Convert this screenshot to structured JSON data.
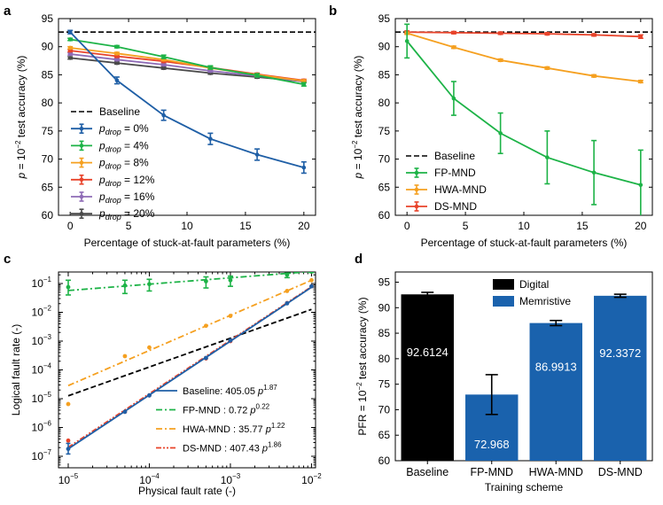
{
  "colors": {
    "blue": "#1f5fa6",
    "green": "#1db347",
    "orange": "#f5a020",
    "red": "#e8432a",
    "purple": "#8e6bb6",
    "dark": "#4a4a4a",
    "black": "#000000",
    "bar_blue": "#1a62ad"
  },
  "chart_data": [
    {
      "panel": "a",
      "type": "line",
      "xlabel": "Percentage of stuck-at-fault parameters (%)",
      "ylabel_prefix": "p",
      "ylabel_mid": " = 10",
      "ylabel_sup": "−2",
      "ylabel_suffix": " test accuracy (%)",
      "x_ticks": [
        0,
        5,
        10,
        15,
        20
      ],
      "y_ticks": [
        60,
        65,
        70,
        75,
        80,
        85,
        90,
        95
      ],
      "xlim": [
        -1,
        21
      ],
      "ylim": [
        60,
        95
      ],
      "baseline": 92.6,
      "legend_position": "bottom-left",
      "legend_baseline_label": "Baseline",
      "x": [
        0,
        4,
        8,
        12,
        16,
        20
      ],
      "series": [
        {
          "label_pre": "p",
          "label_sub": "drop",
          "label_post": " = 0%",
          "color_key": "blue",
          "values": [
            92.6,
            84.0,
            77.8,
            73.6,
            70.8,
            68.5
          ],
          "errors": [
            0.3,
            0.6,
            0.9,
            1.0,
            1.0,
            1.0
          ]
        },
        {
          "label_pre": "p",
          "label_sub": "drop",
          "label_post": " = 4%",
          "color_key": "green",
          "values": [
            91.3,
            90.0,
            88.2,
            86.3,
            84.9,
            83.3
          ],
          "errors": [
            0.2,
            0.2,
            0.3,
            0.3,
            0.3,
            0.3
          ]
        },
        {
          "label_pre": "p",
          "label_sub": "drop",
          "label_post": " = 8%",
          "color_key": "orange",
          "values": [
            89.8,
            88.8,
            87.7,
            86.2,
            85.0,
            83.9
          ],
          "errors": [
            0.2,
            0.2,
            0.2,
            0.2,
            0.2,
            0.2
          ]
        },
        {
          "label_pre": "p",
          "label_sub": "drop",
          "label_post": " = 12%",
          "color_key": "red",
          "values": [
            89.3,
            88.3,
            87.4,
            86.3,
            85.1,
            84.0
          ],
          "errors": [
            0.2,
            0.2,
            0.2,
            0.2,
            0.2,
            0.2
          ]
        },
        {
          "label_pre": "p",
          "label_sub": "drop",
          "label_post": " = 16%",
          "color_key": "purple",
          "values": [
            88.7,
            87.7,
            86.8,
            85.7,
            84.8,
            83.8
          ],
          "errors": [
            0.2,
            0.2,
            0.2,
            0.2,
            0.2,
            0.2
          ]
        },
        {
          "label_pre": "p",
          "label_sub": "drop",
          "label_post": " = 20%",
          "color_key": "dark",
          "values": [
            88.0,
            87.1,
            86.2,
            85.3,
            84.6,
            83.8
          ],
          "errors": [
            0.2,
            0.2,
            0.2,
            0.2,
            0.2,
            0.2
          ]
        }
      ]
    },
    {
      "panel": "b",
      "type": "line",
      "xlabel": "Percentage of stuck-at-fault parameters (%)",
      "ylabel_prefix": "p",
      "ylabel_mid": " = 10",
      "ylabel_sup": "−2",
      "ylabel_suffix": " test accuracy (%)",
      "x_ticks": [
        0,
        5,
        10,
        15,
        20
      ],
      "y_ticks": [
        60,
        65,
        70,
        75,
        80,
        85,
        90,
        95
      ],
      "xlim": [
        -1,
        21
      ],
      "ylim": [
        60,
        95
      ],
      "baseline": 92.6,
      "legend_position": "bottom-left",
      "legend_baseline_label": "Baseline",
      "x": [
        0,
        4,
        8,
        12,
        16,
        20
      ],
      "series": [
        {
          "label": "FP-MND",
          "color_key": "green",
          "values": [
            91.0,
            80.8,
            74.6,
            70.3,
            67.6,
            65.4
          ],
          "errors": [
            3.0,
            3.0,
            3.6,
            4.7,
            5.7,
            6.2
          ]
        },
        {
          "label": "HWA-MND",
          "color_key": "orange",
          "values": [
            92.4,
            89.9,
            87.6,
            86.2,
            84.8,
            83.8
          ],
          "errors": [
            0.2,
            0.2,
            0.2,
            0.2,
            0.2,
            0.2
          ]
        },
        {
          "label": "DS-MND",
          "color_key": "red",
          "values": [
            92.6,
            92.5,
            92.4,
            92.3,
            92.1,
            91.8
          ],
          "errors": [
            0.2,
            0.2,
            0.2,
            0.2,
            0.2,
            0.3
          ]
        }
      ]
    },
    {
      "panel": "c",
      "type": "scatter",
      "scale": "log-log",
      "xlabel": "Physical fault rate (-)",
      "ylabel": "Logical fault rate (-)",
      "x_tick_exponents": [
        -5,
        -4,
        -3,
        -2
      ],
      "y_tick_exponents": [
        -7,
        -6,
        -5,
        -4,
        -3,
        -2,
        -1
      ],
      "xlim_exp": [
        -5.12,
        -1.95
      ],
      "ylim_exp": [
        -7.4,
        -0.6
      ],
      "baseline_fit": {
        "a": 1.26,
        "b": 1.0
      },
      "legend_position": "bottom-right",
      "x": [
        1e-05,
        5e-05,
        0.0001,
        0.0005,
        0.001,
        0.005,
        0.01
      ],
      "series": [
        {
          "label": "Baseline: 405.05 ",
          "fit_sym": "p",
          "fit_exp": "1.87",
          "color_key": "blue",
          "dash": "",
          "fit": {
            "a": 405.05,
            "b": 1.87
          },
          "values": [
            1.8e-07,
            3.5e-06,
            1.3e-05,
            0.00026,
            0.00105,
            0.0205,
            0.08
          ]
        },
        {
          "label": "FP-MND : 0.72 ",
          "fit_sym": "p",
          "fit_exp": "0.22",
          "color_key": "green",
          "dash": "7,3,2,3",
          "fit": {
            "a": 0.72,
            "b": 0.22
          },
          "values": [
            0.075,
            0.085,
            0.095,
            0.12,
            0.13,
            0.2,
            0.26
          ],
          "err_low": [
            0.04,
            0.045,
            0.055,
            0.07,
            0.08,
            0.16,
            0.24
          ],
          "err_high": [
            0.13,
            0.13,
            0.14,
            0.17,
            0.18,
            0.23,
            0.28
          ]
        },
        {
          "label": "HWA-MND : 35.77 ",
          "fit_sym": "p",
          "fit_exp": "1.22",
          "color_key": "orange",
          "dash": "7,3,2,3",
          "fit": {
            "a": 35.77,
            "b": 1.22
          },
          "values": [
            6.5e-06,
            0.0003,
            0.0006,
            0.0034,
            0.0075,
            0.055,
            0.13
          ]
        },
        {
          "label": "DS-MND : 407.43 ",
          "fit_sym": "p",
          "fit_exp": "1.86",
          "color_key": "red",
          "dash": "6,2,2,2,2,2",
          "fit": {
            "a": 407.43,
            "b": 1.86
          },
          "values": [
            3.5e-07,
            3.5e-06,
            1.3e-05,
            0.00025,
            0.001,
            0.021,
            0.08
          ]
        }
      ]
    },
    {
      "panel": "d",
      "type": "bar",
      "xlabel": "Training scheme",
      "ylabel_prefix": "PFR = 10",
      "ylabel_sup": "−2",
      "ylabel_suffix": " test accuracy (%)",
      "ylim": [
        60,
        97
      ],
      "y_ticks": [
        60,
        65,
        70,
        75,
        80,
        85,
        90,
        95
      ],
      "categories": [
        "Baseline",
        "FP-MND",
        "HWA-MND",
        "DS-MND"
      ],
      "values": [
        92.6124,
        72.968,
        86.9913,
        92.3372
      ],
      "value_labels": [
        "92.6124",
        "72.968",
        "86.9913",
        "92.3372"
      ],
      "errors": [
        0.4,
        3.9,
        0.5,
        0.3
      ],
      "bar_types": [
        "digital",
        "memristive",
        "memristive",
        "memristive"
      ],
      "legend_position": "top-center",
      "legend": [
        {
          "label": "Digital",
          "color_key": "black"
        },
        {
          "label": "Memristive",
          "color_key": "bar_blue"
        }
      ]
    }
  ]
}
